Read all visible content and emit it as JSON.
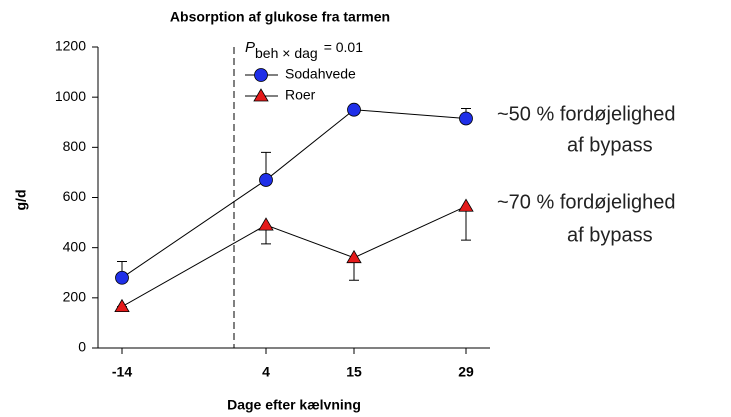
{
  "chart_data": {
    "type": "line",
    "title": "Absorption af glukose fra tarmen",
    "xlabel": "Dage efter kælvning",
    "ylabel": "g/d",
    "x": [
      -14,
      4,
      15,
      29
    ],
    "xlim": [
      -17,
      32
    ],
    "xticks": [
      -14,
      4,
      15,
      29
    ],
    "ylim": [
      0,
      1200
    ],
    "yticks": [
      0,
      200,
      400,
      600,
      800,
      1000,
      1200
    ],
    "vline": 0,
    "series": [
      {
        "name": "Sodahvede",
        "color": "#1f2fe8",
        "marker": "circle",
        "error_direction": "up",
        "values": [
          280,
          670,
          950,
          915
        ],
        "errors": [
          65,
          110,
          10,
          40
        ]
      },
      {
        "name": "Roer",
        "color": "#e41a1a",
        "marker": "triangle",
        "error_direction": "down",
        "values": [
          165,
          490,
          360,
          565
        ],
        "errors": [
          0,
          75,
          90,
          135
        ]
      }
    ],
    "annotation": {
      "p": "P",
      "sub": "beh × dag",
      "rest": "= 0.01"
    },
    "notes": [
      {
        "line1": "~50 % fordøjelighed",
        "line2": "af bypass"
      },
      {
        "line1": "~70 % fordøjelighed",
        "line2": "af bypass"
      }
    ]
  }
}
